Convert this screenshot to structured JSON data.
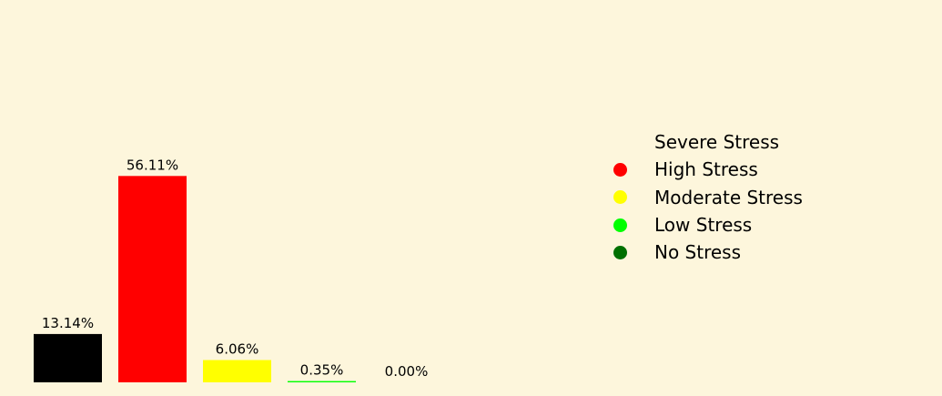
{
  "chart_data": {
    "type": "bar",
    "categories": [
      "Severe Stress",
      "High Stress",
      "Moderate Stress",
      "Low Stress",
      "No Stress"
    ],
    "values": [
      13.14,
      56.11,
      6.06,
      0.35,
      0.0
    ],
    "data_labels": [
      "13.14%",
      "56.11%",
      "6.06%",
      "0.35%",
      "0.00%"
    ],
    "colors": [
      "#000000",
      "#ff0000",
      "#ffff00",
      "#00ff00",
      "#007000"
    ],
    "ylim": [
      0,
      100
    ],
    "grid": false,
    "legend_position": "right",
    "background": "#fdf6dc"
  },
  "legend": {
    "items": [
      {
        "label": "Severe Stress",
        "color": "#000000"
      },
      {
        "label": "High Stress",
        "color": "#ff0000"
      },
      {
        "label": "Moderate Stress",
        "color": "#ffff00"
      },
      {
        "label": "Low Stress",
        "color": "#00ff00"
      },
      {
        "label": "No Stress",
        "color": "#007000"
      }
    ]
  }
}
